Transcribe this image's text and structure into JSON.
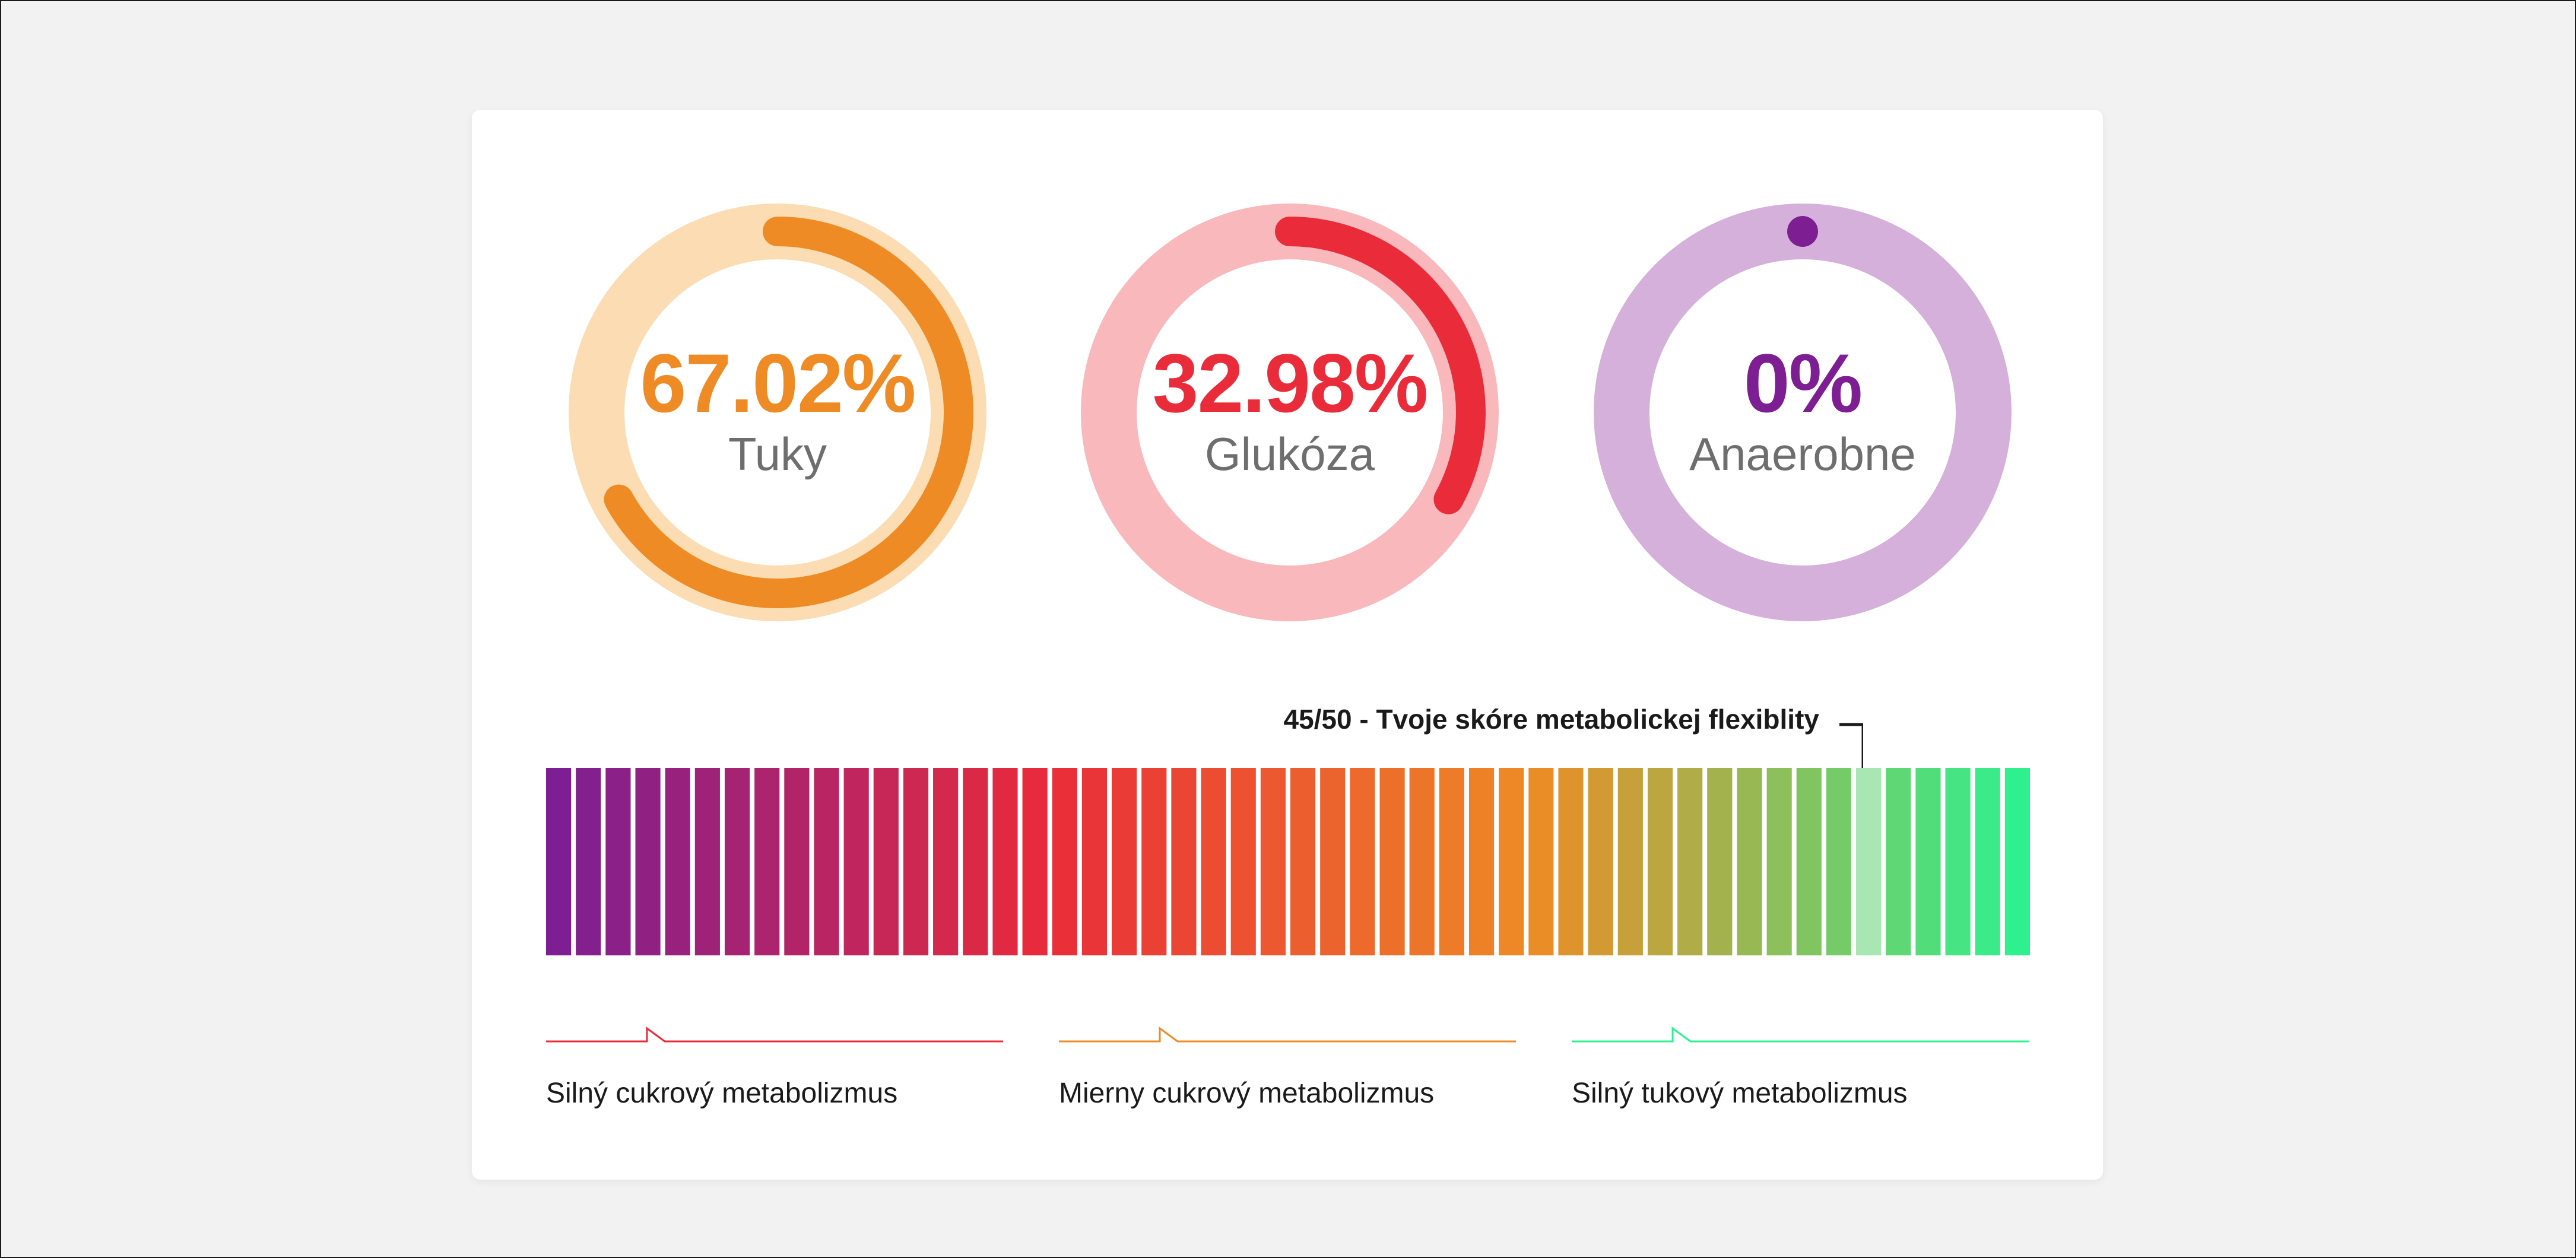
{
  "gauges": [
    {
      "value": "67.02%",
      "label": "Tuky",
      "fraction": 0.6702,
      "color": "#ee8b24",
      "track": "#fbdcb3"
    },
    {
      "value": "32.98%",
      "label": "Glukóza",
      "fraction": 0.3298,
      "color": "#ea2b3a",
      "track": "#f8b8bc"
    },
    {
      "value": "0%",
      "label": "Anaerobne",
      "fraction": 0,
      "color": "#7d1e93",
      "track": "#d5b0db"
    }
  ],
  "score": {
    "label": "45/50 - Tvoje skóre metabolickej flexiblity",
    "value": 45,
    "max": 50,
    "highlight_color": "#a8e6b4"
  },
  "scale_colors": [
    "#7d1e93",
    "#ea2b3a",
    "#ee8b24",
    "#2ff08f"
  ],
  "legend": [
    {
      "label": "Silný cukrový metabolizmus",
      "color": "#ea2b3a"
    },
    {
      "label": "Mierny cukrový metabolizmus",
      "color": "#ee8b24"
    },
    {
      "label": "Silný tukový metabolizmus",
      "color": "#2ff08f"
    }
  ]
}
